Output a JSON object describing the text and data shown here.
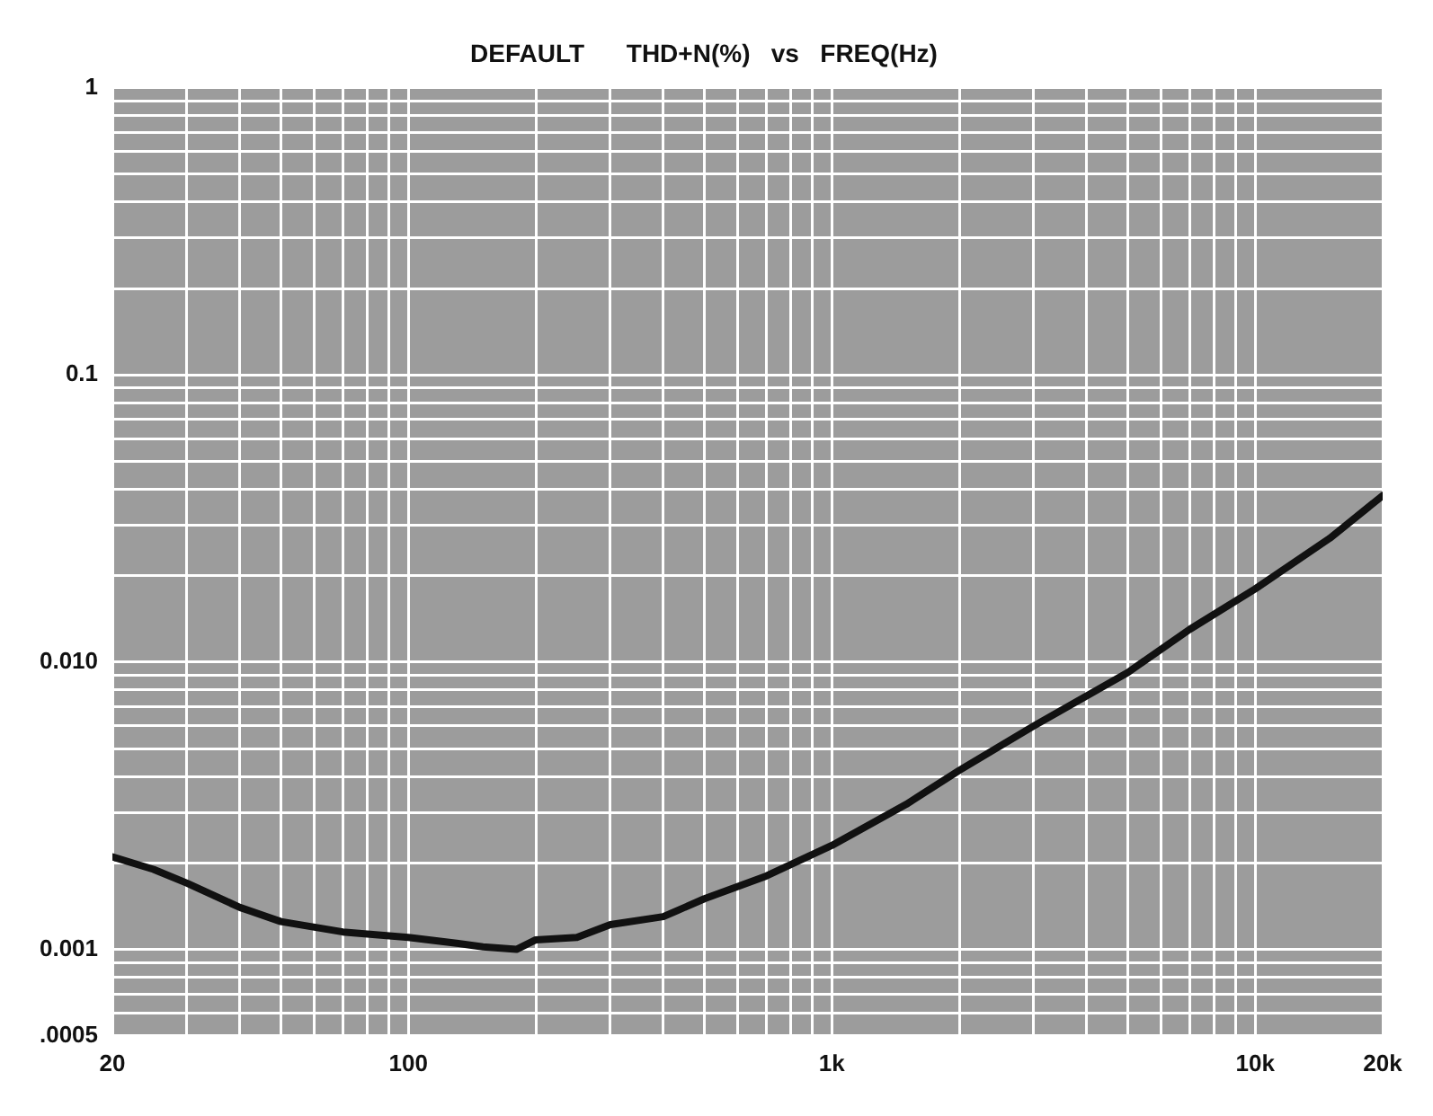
{
  "chart_data": {
    "type": "line",
    "title": "DEFAULT      THD+N(%)   vs   FREQ(Hz)",
    "log": "xy",
    "grid": true,
    "legend": false,
    "marker": "none",
    "line_style": "solid",
    "xlim": [
      20,
      20000
    ],
    "ylim": [
      0.0005,
      1
    ],
    "xticks": [
      20,
      {
        "value": 30,
        "label": null
      },
      {
        "value": 40,
        "label": null
      },
      {
        "value": 50,
        "label": null
      },
      {
        "value": 60,
        "label": null
      },
      {
        "value": 70,
        "label": null
      },
      {
        "value": 80,
        "label": null
      },
      {
        "value": 90,
        "label": null
      },
      100,
      {
        "value": 200,
        "label": null
      },
      {
        "value": 300,
        "label": null
      },
      {
        "value": 400,
        "label": null
      },
      {
        "value": 500,
        "label": null
      },
      {
        "value": 600,
        "label": null
      },
      {
        "value": 700,
        "label": null
      },
      {
        "value": 800,
        "label": null
      },
      {
        "value": 900,
        "label": null
      },
      {
        "value": 1000,
        "label": "1k"
      },
      {
        "value": 2000,
        "label": null
      },
      {
        "value": 3000,
        "label": null
      },
      {
        "value": 4000,
        "label": null
      },
      {
        "value": 5000,
        "label": null
      },
      {
        "value": 6000,
        "label": null
      },
      {
        "value": 7000,
        "label": null
      },
      {
        "value": 8000,
        "label": null
      },
      {
        "value": 9000,
        "label": null
      },
      {
        "value": 10000,
        "label": "10k"
      },
      {
        "value": 20000,
        "label": "20k"
      }
    ],
    "yticks": [
      {
        "value": 0.0005,
        "label": ".0005"
      },
      {
        "value": 0.0006,
        "label": null
      },
      {
        "value": 0.0007,
        "label": null
      },
      {
        "value": 0.0008,
        "label": null
      },
      {
        "value": 0.0009,
        "label": null
      },
      {
        "value": 0.001,
        "label": "0.001"
      },
      {
        "value": 0.002,
        "label": null
      },
      {
        "value": 0.003,
        "label": null
      },
      {
        "value": 0.004,
        "label": null
      },
      {
        "value": 0.005,
        "label": null
      },
      {
        "value": 0.006,
        "label": null
      },
      {
        "value": 0.007,
        "label": null
      },
      {
        "value": 0.008,
        "label": null
      },
      {
        "value": 0.009,
        "label": null
      },
      {
        "value": 0.01,
        "label": "0.010"
      },
      {
        "value": 0.02,
        "label": null
      },
      {
        "value": 0.03,
        "label": null
      },
      {
        "value": 0.04,
        "label": null
      },
      {
        "value": 0.05,
        "label": null
      },
      {
        "value": 0.06,
        "label": null
      },
      {
        "value": 0.07,
        "label": null
      },
      {
        "value": 0.08,
        "label": null
      },
      {
        "value": 0.09,
        "label": null
      },
      0.1,
      {
        "value": 0.2,
        "label": null
      },
      {
        "value": 0.3,
        "label": null
      },
      {
        "value": 0.4,
        "label": null
      },
      {
        "value": 0.5,
        "label": null
      },
      {
        "value": 0.6,
        "label": null
      },
      {
        "value": 0.7,
        "label": null
      },
      {
        "value": 0.8,
        "label": null
      },
      {
        "value": 0.9,
        "label": null
      },
      1
    ],
    "series": [
      {
        "color": "#111111",
        "x": [
          20,
          25,
          30,
          40,
          50,
          70,
          100,
          130,
          150,
          180,
          200,
          250,
          300,
          400,
          500,
          700,
          1000,
          1500,
          2000,
          3000,
          5000,
          7000,
          10000,
          15000,
          20000
        ],
        "values": [
          0.0021,
          0.0019,
          0.0017,
          0.0014,
          0.00125,
          0.00115,
          0.0011,
          0.00105,
          0.00102,
          0.001,
          0.00108,
          0.0011,
          0.00122,
          0.0013,
          0.0015,
          0.0018,
          0.0023,
          0.0032,
          0.0042,
          0.006,
          0.0092,
          0.013,
          0.018,
          0.027,
          0.038
        ]
      }
    ]
  }
}
